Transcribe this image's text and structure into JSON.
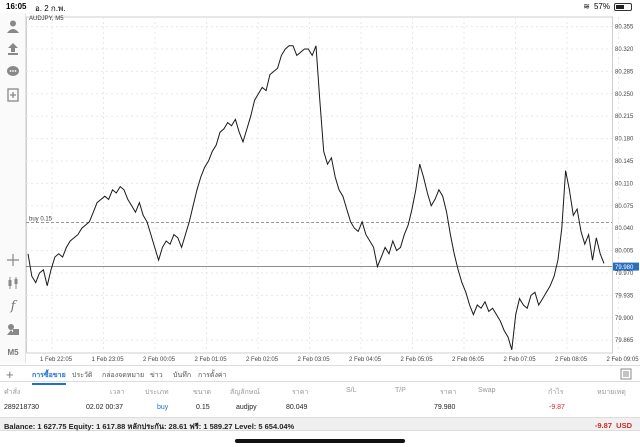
{
  "status": {
    "time": "16:05",
    "date": "อ. 2 ก.พ.",
    "battery": "57%",
    "battery_level": 0.57
  },
  "chart": {
    "symbol_label": "AUDJPY, M5",
    "order_line_label": "buy 0.15",
    "current_price_label": "79.980"
  },
  "chart_data": {
    "type": "line",
    "ylim": [
      79.845,
      80.37
    ],
    "y_ticks": [
      "80.355",
      "80.320",
      "80.285",
      "80.250",
      "80.215",
      "80.180",
      "80.145",
      "80.110",
      "80.075",
      "80.040",
      "80.005",
      "79.970",
      "79.935",
      "79.900",
      "79.865"
    ],
    "y_tick_values": [
      80.355,
      80.32,
      80.285,
      80.25,
      80.215,
      80.18,
      80.145,
      80.11,
      80.075,
      80.04,
      80.005,
      79.97,
      79.935,
      79.9,
      79.865
    ],
    "x_tick_labels": [
      "1 Feb 22:05",
      "1 Feb 23:05",
      "2 Feb 00:05",
      "2 Feb 01:05",
      "2 Feb 02:05",
      "2 Feb 03:05",
      "2 Feb 04:05",
      "2 Feb 05:05",
      "2 Feb 06:05",
      "2 Feb 07:05",
      "2 Feb 08:05",
      "2 Feb 09:05"
    ],
    "order_line_value": 80.049,
    "current_price": 79.98,
    "series": [
      {
        "values": [
          80.0,
          79.965,
          79.955,
          79.97,
          79.975,
          79.95,
          79.975,
          79.995,
          80.0,
          79.995,
          80.01,
          80.02,
          80.025,
          80.03,
          80.04,
          80.045,
          80.05,
          80.065,
          80.08,
          80.085,
          80.09,
          80.085,
          80.1,
          80.095,
          80.105,
          80.1,
          80.085,
          80.075,
          80.065,
          80.08,
          80.06,
          80.05,
          80.03,
          80.01,
          79.99,
          80.01,
          80.02,
          80.015,
          80.03,
          80.025,
          80.01,
          80.03,
          80.05,
          80.075,
          80.1,
          80.12,
          80.135,
          80.145,
          80.16,
          80.17,
          80.19,
          80.195,
          80.205,
          80.2,
          80.21,
          80.19,
          80.175,
          80.195,
          80.215,
          80.24,
          80.25,
          80.26,
          80.255,
          80.28,
          80.285,
          80.29,
          80.31,
          80.32,
          80.325,
          80.325,
          80.31,
          80.315,
          80.32,
          80.32,
          80.31,
          80.325,
          80.24,
          80.16,
          80.14,
          80.15,
          80.12,
          80.1,
          80.09,
          80.07,
          80.05,
          80.04,
          80.035,
          80.05,
          80.03,
          80.02,
          80.01,
          79.98,
          79.995,
          80.01,
          80.0,
          80.02,
          80.005,
          80.01,
          80.03,
          80.045,
          80.07,
          80.1,
          80.14,
          80.12,
          80.095,
          80.075,
          80.085,
          80.1,
          80.09,
          80.065,
          80.03,
          80.0,
          79.975,
          79.955,
          79.94,
          79.92,
          79.905,
          79.92,
          79.915,
          79.925,
          79.91,
          79.915,
          79.905,
          79.895,
          79.88,
          79.87,
          79.85,
          79.905,
          79.93,
          79.92,
          79.915,
          79.935,
          79.94,
          79.92,
          79.93,
          79.94,
          79.95,
          79.965,
          79.99,
          80.04,
          80.13,
          80.1,
          80.06,
          80.07,
          80.035,
          80.015,
          80.03,
          79.99,
          80.025,
          80.0,
          79.985
        ]
      }
    ]
  },
  "tabs": [
    {
      "label": "การซื้อขาย"
    },
    {
      "label": "ประวัติ"
    },
    {
      "label": "กล่องจดหมาย"
    },
    {
      "label": "ข่าว"
    },
    {
      "label": "บันทึก"
    },
    {
      "label": "การตั้งค่า"
    }
  ],
  "table": {
    "headers": [
      "คำสั่ง",
      "เวลา",
      "ประเภท",
      "ขนาด",
      "สัญลักษณ์",
      "ราคา",
      "S/L",
      "T/P",
      "ราคา",
      "Swap",
      "กำไร",
      "หมายเหตุ"
    ],
    "row": {
      "order": "289218730",
      "time": "02.02 00:37",
      "type": "buy",
      "size": "0.15",
      "symbol": "audjpy",
      "price_open": "80.049",
      "price_current": "79.980",
      "profit": "-9.87"
    }
  },
  "balance": {
    "text": "Balance: 1 627.75 Equity: 1 617.88 หลักประกัน: 28.61 ฟรี: 1 589.27 Level: 5 654.04%",
    "profit": "-9.87",
    "currency": "USD"
  },
  "colors": {
    "accent": "#1f6fd6",
    "loss": "#d02a2a",
    "price_tag": "#2a6fbf",
    "grid": "#e8e8e8"
  }
}
